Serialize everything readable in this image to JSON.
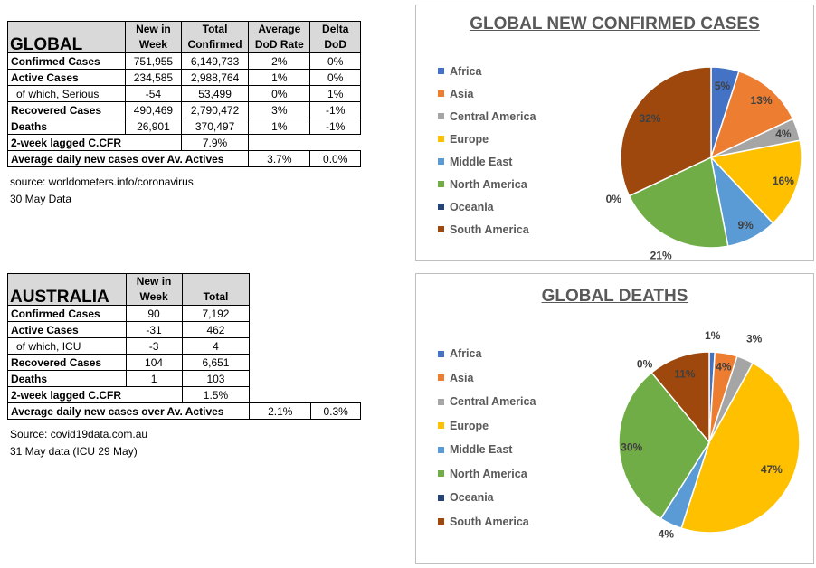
{
  "global": {
    "title": "GLOBAL",
    "col_headers": [
      "New in Week",
      "Total Confirmed",
      "Average DoD  Rate",
      "Delta DoD"
    ],
    "rows": [
      {
        "label": "Confirmed Cases",
        "new": "751,955",
        "total": "6,149,733",
        "avg": "2%",
        "delta": "0%"
      },
      {
        "label": "Active Cases",
        "new": "234,585",
        "total": "2,988,764",
        "avg": "1%",
        "delta": "0%"
      },
      {
        "label": "of which, Serious",
        "new": "-54",
        "total": "53,499",
        "avg": "0%",
        "delta": "1%"
      },
      {
        "label": "Recovered Cases",
        "new": "490,469",
        "total": "2,790,472",
        "avg": "3%",
        "delta": "-1%"
      },
      {
        "label": "Deaths",
        "new": "26,901",
        "total": "370,497",
        "avg": "1%",
        "delta": "-1%"
      }
    ],
    "cfr_label": "2-week lagged C.CFR",
    "cfr_value": "7.9%",
    "avg_label": "Average daily new cases over Av. Actives",
    "avg_value": "3.7%",
    "avg_delta": "0.0%",
    "source": "source: worldometers.info/coronavirus",
    "date": "30 May Data"
  },
  "australia": {
    "title": "AUSTRALIA",
    "col_headers": [
      "New in Week",
      "Total"
    ],
    "rows": [
      {
        "label": "Confirmed Cases",
        "new": "90",
        "total": "7,192"
      },
      {
        "label": "Active Cases",
        "new": "-31",
        "total": "462"
      },
      {
        "label": "of which, ICU",
        "new": "-3",
        "total": "4"
      },
      {
        "label": "Recovered Cases",
        "new": "104",
        "total": "6,651"
      },
      {
        "label": "Deaths",
        "new": "1",
        "total": "103"
      }
    ],
    "cfr_label": "2-week lagged C.CFR",
    "cfr_value": "1.5%",
    "avg_label": "Average daily new cases over Av. Actives",
    "avg_value": "2.1%",
    "avg_delta": "0.3%",
    "source": "Source: covid19data.com.au",
    "date": "31 May data (ICU 29 May)"
  },
  "colors": {
    "Africa": "#4472c4",
    "Asia": "#ed7d31",
    "Central America": "#a5a5a5",
    "Europe": "#ffc000",
    "Middle East": "#5b9bd5",
    "North America": "#70ad47",
    "Oceania": "#264478",
    "South America": "#9e480e"
  },
  "chart_data": [
    {
      "type": "pie",
      "title": "GLOBAL NEW CONFIRMED CASES",
      "legend": "left",
      "categories": [
        "Africa",
        "Asia",
        "Central America",
        "Europe",
        "Middle East",
        "North America",
        "Oceania",
        "South America"
      ],
      "values": [
        5,
        13,
        4,
        16,
        9,
        21,
        0,
        32
      ],
      "labels": [
        "5%",
        "13%",
        "4%",
        "16%",
        "9%",
        "21%",
        "0%",
        "32%"
      ]
    },
    {
      "type": "pie",
      "title": "GLOBAL DEATHS",
      "legend": "left",
      "categories": [
        "Africa",
        "Asia",
        "Central America",
        "Europe",
        "Middle East",
        "North America",
        "Oceania",
        "South America"
      ],
      "values": [
        1,
        4,
        3,
        47,
        4,
        30,
        0,
        11
      ],
      "labels": [
        "1%",
        "4%",
        "3%",
        "47%",
        "4%",
        "30%",
        "0%",
        "11%"
      ]
    }
  ]
}
